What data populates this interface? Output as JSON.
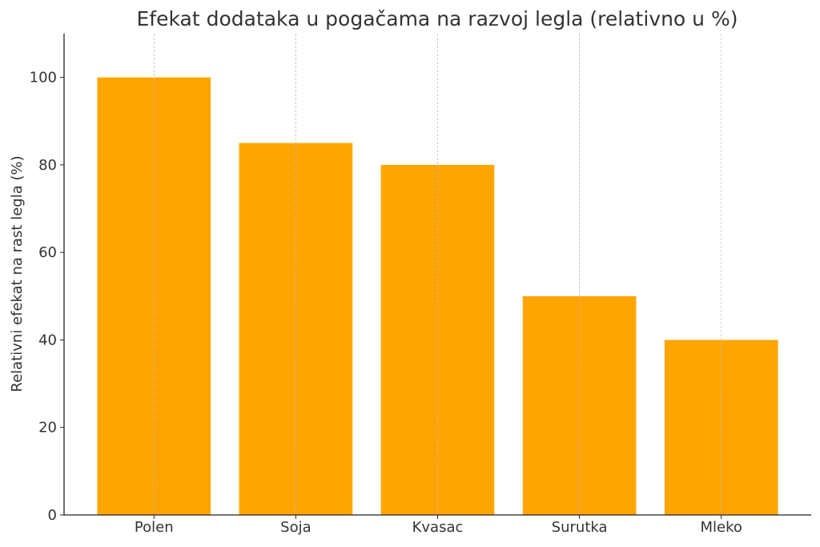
{
  "chart_data": {
    "type": "bar",
    "title": "Efekat dodataka u pogačama na razvoj legla (relativno u %)",
    "xlabel": "",
    "ylabel": "Relativni efekat na rast legla (%)",
    "categories": [
      "Polen",
      "Soja",
      "Kvasac",
      "Surutka",
      "Mleko"
    ],
    "values": [
      100,
      85,
      80,
      50,
      40
    ],
    "ylim": [
      0,
      110
    ],
    "yticks": [
      0,
      20,
      40,
      60,
      80,
      100
    ],
    "grid": "x-dashed",
    "legend": "none",
    "bar_color": "#FFA500"
  }
}
